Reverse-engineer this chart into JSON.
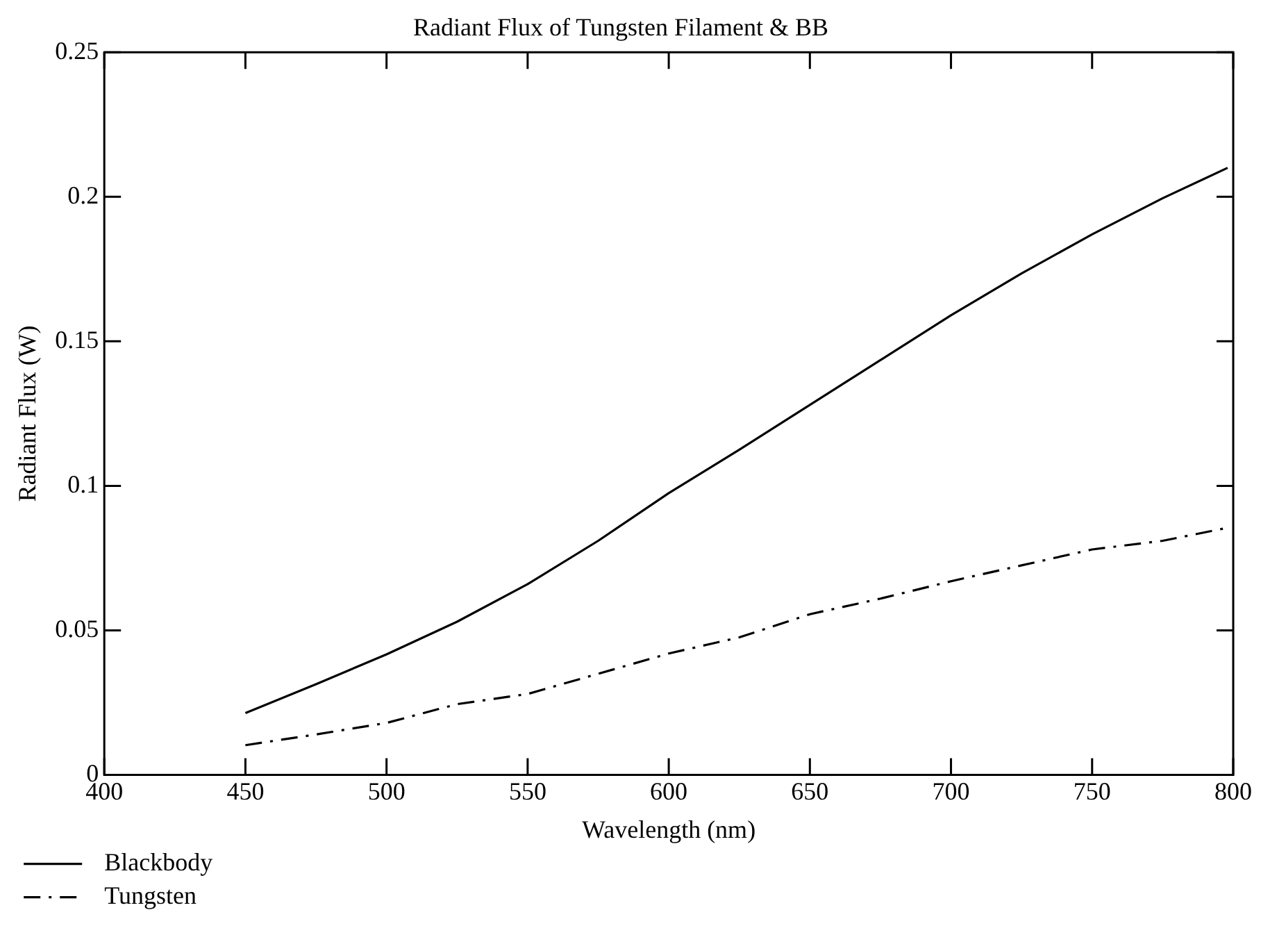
{
  "chart_data": {
    "type": "line",
    "title": "Radiant Flux of Tungsten Filament & BB",
    "xlabel": "Wavelength (nm)",
    "ylabel": "Radiant Flux (W)",
    "x": [
      450,
      475,
      500,
      525,
      550,
      575,
      600,
      625,
      650,
      675,
      700,
      725,
      750,
      775,
      798
    ],
    "series": [
      {
        "name": "Blackbody",
        "color": "#000000",
        "line_style": "solid",
        "values": [
          0.0214,
          0.0314,
          0.0417,
          0.053,
          0.066,
          0.081,
          0.0975,
          0.1125,
          0.128,
          0.1435,
          0.159,
          0.1735,
          0.187,
          0.1995,
          0.21
        ]
      },
      {
        "name": "Tungsten",
        "color": "#000000",
        "line_style": "dashed",
        "values": [
          0.0103,
          0.014,
          0.018,
          0.0245,
          0.028,
          0.035,
          0.042,
          0.0476,
          0.0556,
          0.061,
          0.067,
          0.0725,
          0.078,
          0.081,
          0.0855
        ]
      }
    ],
    "xlim": [
      400,
      800
    ],
    "xticks": [
      400,
      450,
      500,
      550,
      600,
      650,
      700,
      750,
      800
    ],
    "ylim": [
      0,
      0.25
    ],
    "yticks": [
      0,
      0.05,
      0.1,
      0.15,
      0.2,
      0.25
    ],
    "grid": false,
    "legend": "bottom left",
    "marker": "none"
  }
}
